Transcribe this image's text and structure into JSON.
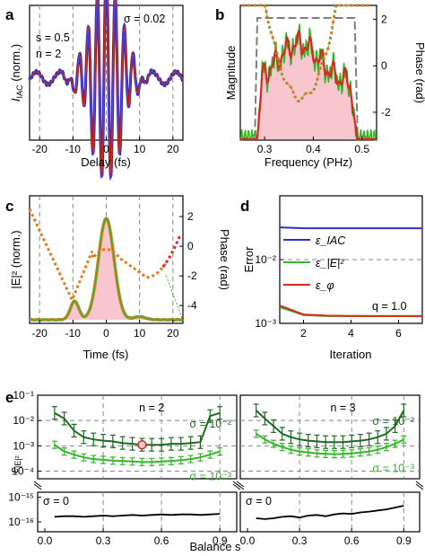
{
  "panels": {
    "a": "a",
    "b": "b",
    "c": "c",
    "d": "d",
    "e": "e"
  },
  "colors": {
    "measured_blue": "#2b32c8",
    "retrieved_red": "#d52b1e",
    "green": "#35b52b",
    "dark_green": "#1f6b1f",
    "orange_dotted": "#e07b20",
    "pink_fill": "#f7c6cf",
    "gray_dashed": "#7d7d7d",
    "black": "#000000"
  },
  "chart_data": [
    {
      "id": "a",
      "type": "line",
      "xlabel": "Delay (fs)",
      "ylabel": "I_IAC (norm.)",
      "xlim": [
        -23,
        23
      ],
      "xticks": [
        "-20",
        "-10",
        "0",
        "10",
        "20"
      ],
      "annotations": [
        "σ = 0.02",
        "s = 0.5",
        "n = 2"
      ],
      "vertical_dashed_lines": [
        -20,
        -10,
        0,
        10,
        20
      ],
      "series": [
        {
          "role": "measured",
          "color": "#2b32c8"
        },
        {
          "role": "retrieved",
          "color": "#d52b1e"
        }
      ]
    },
    {
      "id": "b",
      "type": "line",
      "xlabel": "Frequency (PHz)",
      "ylabel_left": "Magnitude",
      "ylabel_right": "Phase (rad)",
      "xlim": [
        0.25,
        0.53
      ],
      "xticks": [
        "0.3",
        "0.4",
        "0.5"
      ],
      "right_ylim": [
        -3.2,
        2.6
      ],
      "right_yticks": [
        "2",
        "0",
        "-2"
      ],
      "filter_window": {
        "start": 0.285,
        "end": 0.485
      },
      "spectrum_center": 0.375
    },
    {
      "id": "c",
      "type": "line",
      "xlabel": "Time (fs)",
      "ylabel_left": "|E|² (norm.)",
      "ylabel_right": "Phase (rad)",
      "xlim": [
        -23,
        23
      ],
      "xticks": [
        "-20",
        "-10",
        "0",
        "10",
        "20"
      ],
      "right_ylim": [
        -5.2,
        3.4
      ],
      "right_yticks": [
        "2",
        "0",
        "-2",
        "-4"
      ],
      "vertical_dashed_lines": [
        -20,
        -10,
        0,
        10,
        20
      ]
    },
    {
      "id": "d",
      "type": "line",
      "xlabel": "Iteration",
      "ylabel": "Error",
      "xlim": [
        1,
        7
      ],
      "ylim": [
        0.001,
        0.1
      ],
      "yscale": "log",
      "xticks": [
        "2",
        "4",
        "6"
      ],
      "yticks": [
        "10⁻³",
        "10⁻²"
      ],
      "legend_position": "center-left",
      "annotation": "q = 1.0",
      "series": [
        {
          "name": "ε_IAC",
          "color": "#2b32c8",
          "values": [
            0.032,
            0.031,
            0.031,
            0.031,
            0.031,
            0.031,
            0.031
          ]
        },
        {
          "name": "ε_|E|²",
          "color": "#35b52b",
          "values": [
            0.0018,
            0.00135,
            0.0013,
            0.0013,
            0.0013,
            0.0013,
            0.0013
          ]
        },
        {
          "name": "ε_φ",
          "color": "#d52b1e",
          "values": [
            0.0019,
            0.00138,
            0.00132,
            0.00131,
            0.0013,
            0.0013,
            0.0013
          ]
        }
      ]
    },
    {
      "id": "e",
      "type": "line",
      "xlabel": "Balance s",
      "ylabel": "ε_|E|²",
      "yscale": "log (broken axis)",
      "xticks": [
        "0.0",
        "0.3",
        "0.6",
        "0.9"
      ],
      "yticks_upper": [
        "10⁻¹",
        "10⁻²",
        "10⁻³",
        "10⁻⁴"
      ],
      "yticks_lower": [
        "10⁻¹⁵",
        "10⁻¹⁶"
      ],
      "subplots": [
        {
          "label": "n = 2",
          "x": [
            0.05,
            0.1,
            0.15,
            0.2,
            0.25,
            0.3,
            0.35,
            0.4,
            0.45,
            0.5,
            0.55,
            0.6,
            0.65,
            0.7,
            0.75,
            0.8,
            0.85,
            0.9
          ],
          "series": [
            {
              "name": "σ = 10⁻²",
              "color": "#1f6b1f",
              "values": [
                0.02,
                0.012,
                0.004,
                0.0022,
                0.0018,
                0.0016,
                0.0015,
                0.0013,
                0.0012,
                0.0011,
                0.0011,
                0.0011,
                0.0012,
                0.0012,
                0.0013,
                0.0014,
                0.015,
                0.02
              ]
            },
            {
              "name": "σ = 10⁻³",
              "color": "#35b52b",
              "values": [
                0.0011,
                0.0006,
                0.00045,
                0.00035,
                0.0003,
                0.00028,
                0.00026,
                0.00025,
                0.00024,
                0.00023,
                0.00023,
                0.00024,
                0.00025,
                0.00027,
                0.0003,
                0.00035,
                0.00045,
                0.0006
              ]
            },
            {
              "name": "σ = 0",
              "color": "#000000",
              "values": [
                1.6e-16,
                1.7e-16,
                1.7e-16,
                1.6e-16,
                1.7e-16,
                1.8e-16,
                1.7e-16,
                1.8e-16,
                1.9e-16,
                1.8e-16,
                1.9e-16,
                2e-16,
                1.9e-16,
                2e-16,
                2e-16,
                1.9e-16,
                2e-16,
                2.1e-16
              ]
            }
          ],
          "highlight_point": {
            "x": 0.5,
            "y": 0.0011
          }
        },
        {
          "label": "n = 3",
          "x": [
            0.05,
            0.1,
            0.15,
            0.2,
            0.25,
            0.3,
            0.35,
            0.4,
            0.45,
            0.5,
            0.55,
            0.6,
            0.65,
            0.7,
            0.75,
            0.8,
            0.85,
            0.9
          ],
          "series": [
            {
              "name": "σ = 10⁻²",
              "color": "#1f6b1f",
              "values": [
                0.025,
                0.012,
                0.006,
                0.003,
                0.0022,
                0.0018,
                0.0016,
                0.0015,
                0.0014,
                0.0014,
                0.0014,
                0.0015,
                0.0016,
                0.0018,
                0.0022,
                0.003,
                0.006,
                0.025
              ]
            },
            {
              "name": "σ = 10⁻³",
              "color": "#35b52b",
              "values": [
                0.003,
                0.0018,
                0.0012,
                0.0009,
                0.0007,
                0.0006,
                0.00055,
                0.0005,
                0.00048,
                0.00047,
                0.00048,
                0.0005,
                0.00055,
                0.0006,
                0.0007,
                0.0009,
                0.0012,
                0.0018
              ]
            },
            {
              "name": "σ = 0",
              "color": "#000000",
              "values": [
                1.4e-16,
                1.3e-16,
                1.4e-16,
                1.6e-16,
                1.7e-16,
                1.5e-16,
                1.8e-16,
                1.9e-16,
                1.7e-16,
                2e-16,
                2.2e-16,
                2.1e-16,
                2.4e-16,
                2.6e-16,
                2.9e-16,
                3.2e-16,
                3.8e-16,
                4.5e-16
              ]
            }
          ]
        }
      ]
    }
  ]
}
